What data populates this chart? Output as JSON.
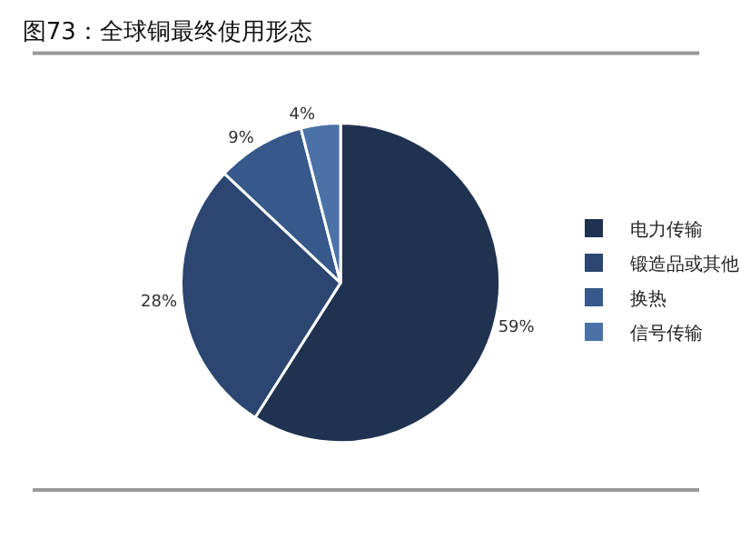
{
  "chart_data": {
    "type": "pie",
    "title": "图73：全球铜最终使用形态",
    "categories": [
      "电力传输",
      "锻造品或其他",
      "换热",
      "信号传输"
    ],
    "values": [
      59,
      28,
      9,
      4
    ],
    "value_labels": [
      "59%",
      "28%",
      "9%",
      "4%"
    ],
    "colors": [
      "#1f3250",
      "#2b4670",
      "#36588a",
      "#4a72a6"
    ],
    "legend": "right"
  }
}
